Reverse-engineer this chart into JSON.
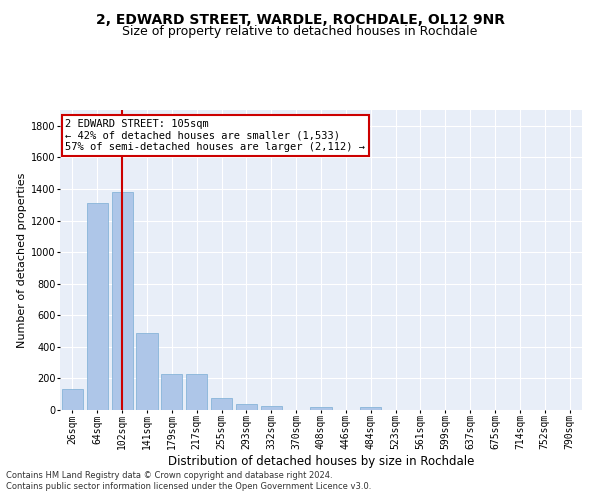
{
  "title1": "2, EDWARD STREET, WARDLE, ROCHDALE, OL12 9NR",
  "title2": "Size of property relative to detached houses in Rochdale",
  "xlabel": "Distribution of detached houses by size in Rochdale",
  "ylabel": "Number of detached properties",
  "categories": [
    "26sqm",
    "64sqm",
    "102sqm",
    "141sqm",
    "179sqm",
    "217sqm",
    "255sqm",
    "293sqm",
    "332sqm",
    "370sqm",
    "408sqm",
    "446sqm",
    "484sqm",
    "523sqm",
    "561sqm",
    "599sqm",
    "637sqm",
    "675sqm",
    "714sqm",
    "752sqm",
    "790sqm"
  ],
  "values": [
    130,
    1310,
    1380,
    490,
    225,
    225,
    75,
    40,
    25,
    0,
    20,
    0,
    20,
    0,
    0,
    0,
    0,
    0,
    0,
    0,
    0
  ],
  "bar_color": "#aec6e8",
  "bar_edge_color": "#7aadd4",
  "vline_x": 2,
  "vline_color": "#cc0000",
  "ylim": [
    0,
    1900
  ],
  "yticks": [
    0,
    200,
    400,
    600,
    800,
    1000,
    1200,
    1400,
    1600,
    1800
  ],
  "annotation_title": "2 EDWARD STREET: 105sqm",
  "annotation_line1": "← 42% of detached houses are smaller (1,533)",
  "annotation_line2": "57% of semi-detached houses are larger (2,112) →",
  "annotation_box_color": "#ffffff",
  "annotation_box_edge": "#cc0000",
  "footnote1": "Contains HM Land Registry data © Crown copyright and database right 2024.",
  "footnote2": "Contains public sector information licensed under the Open Government Licence v3.0.",
  "bg_color": "#ffffff",
  "plot_bg_color": "#e8eef8",
  "grid_color": "#ffffff",
  "title1_fontsize": 10,
  "title2_fontsize": 9,
  "xlabel_fontsize": 8.5,
  "ylabel_fontsize": 8,
  "tick_fontsize": 7,
  "annot_fontsize": 7.5,
  "footnote_fontsize": 6
}
